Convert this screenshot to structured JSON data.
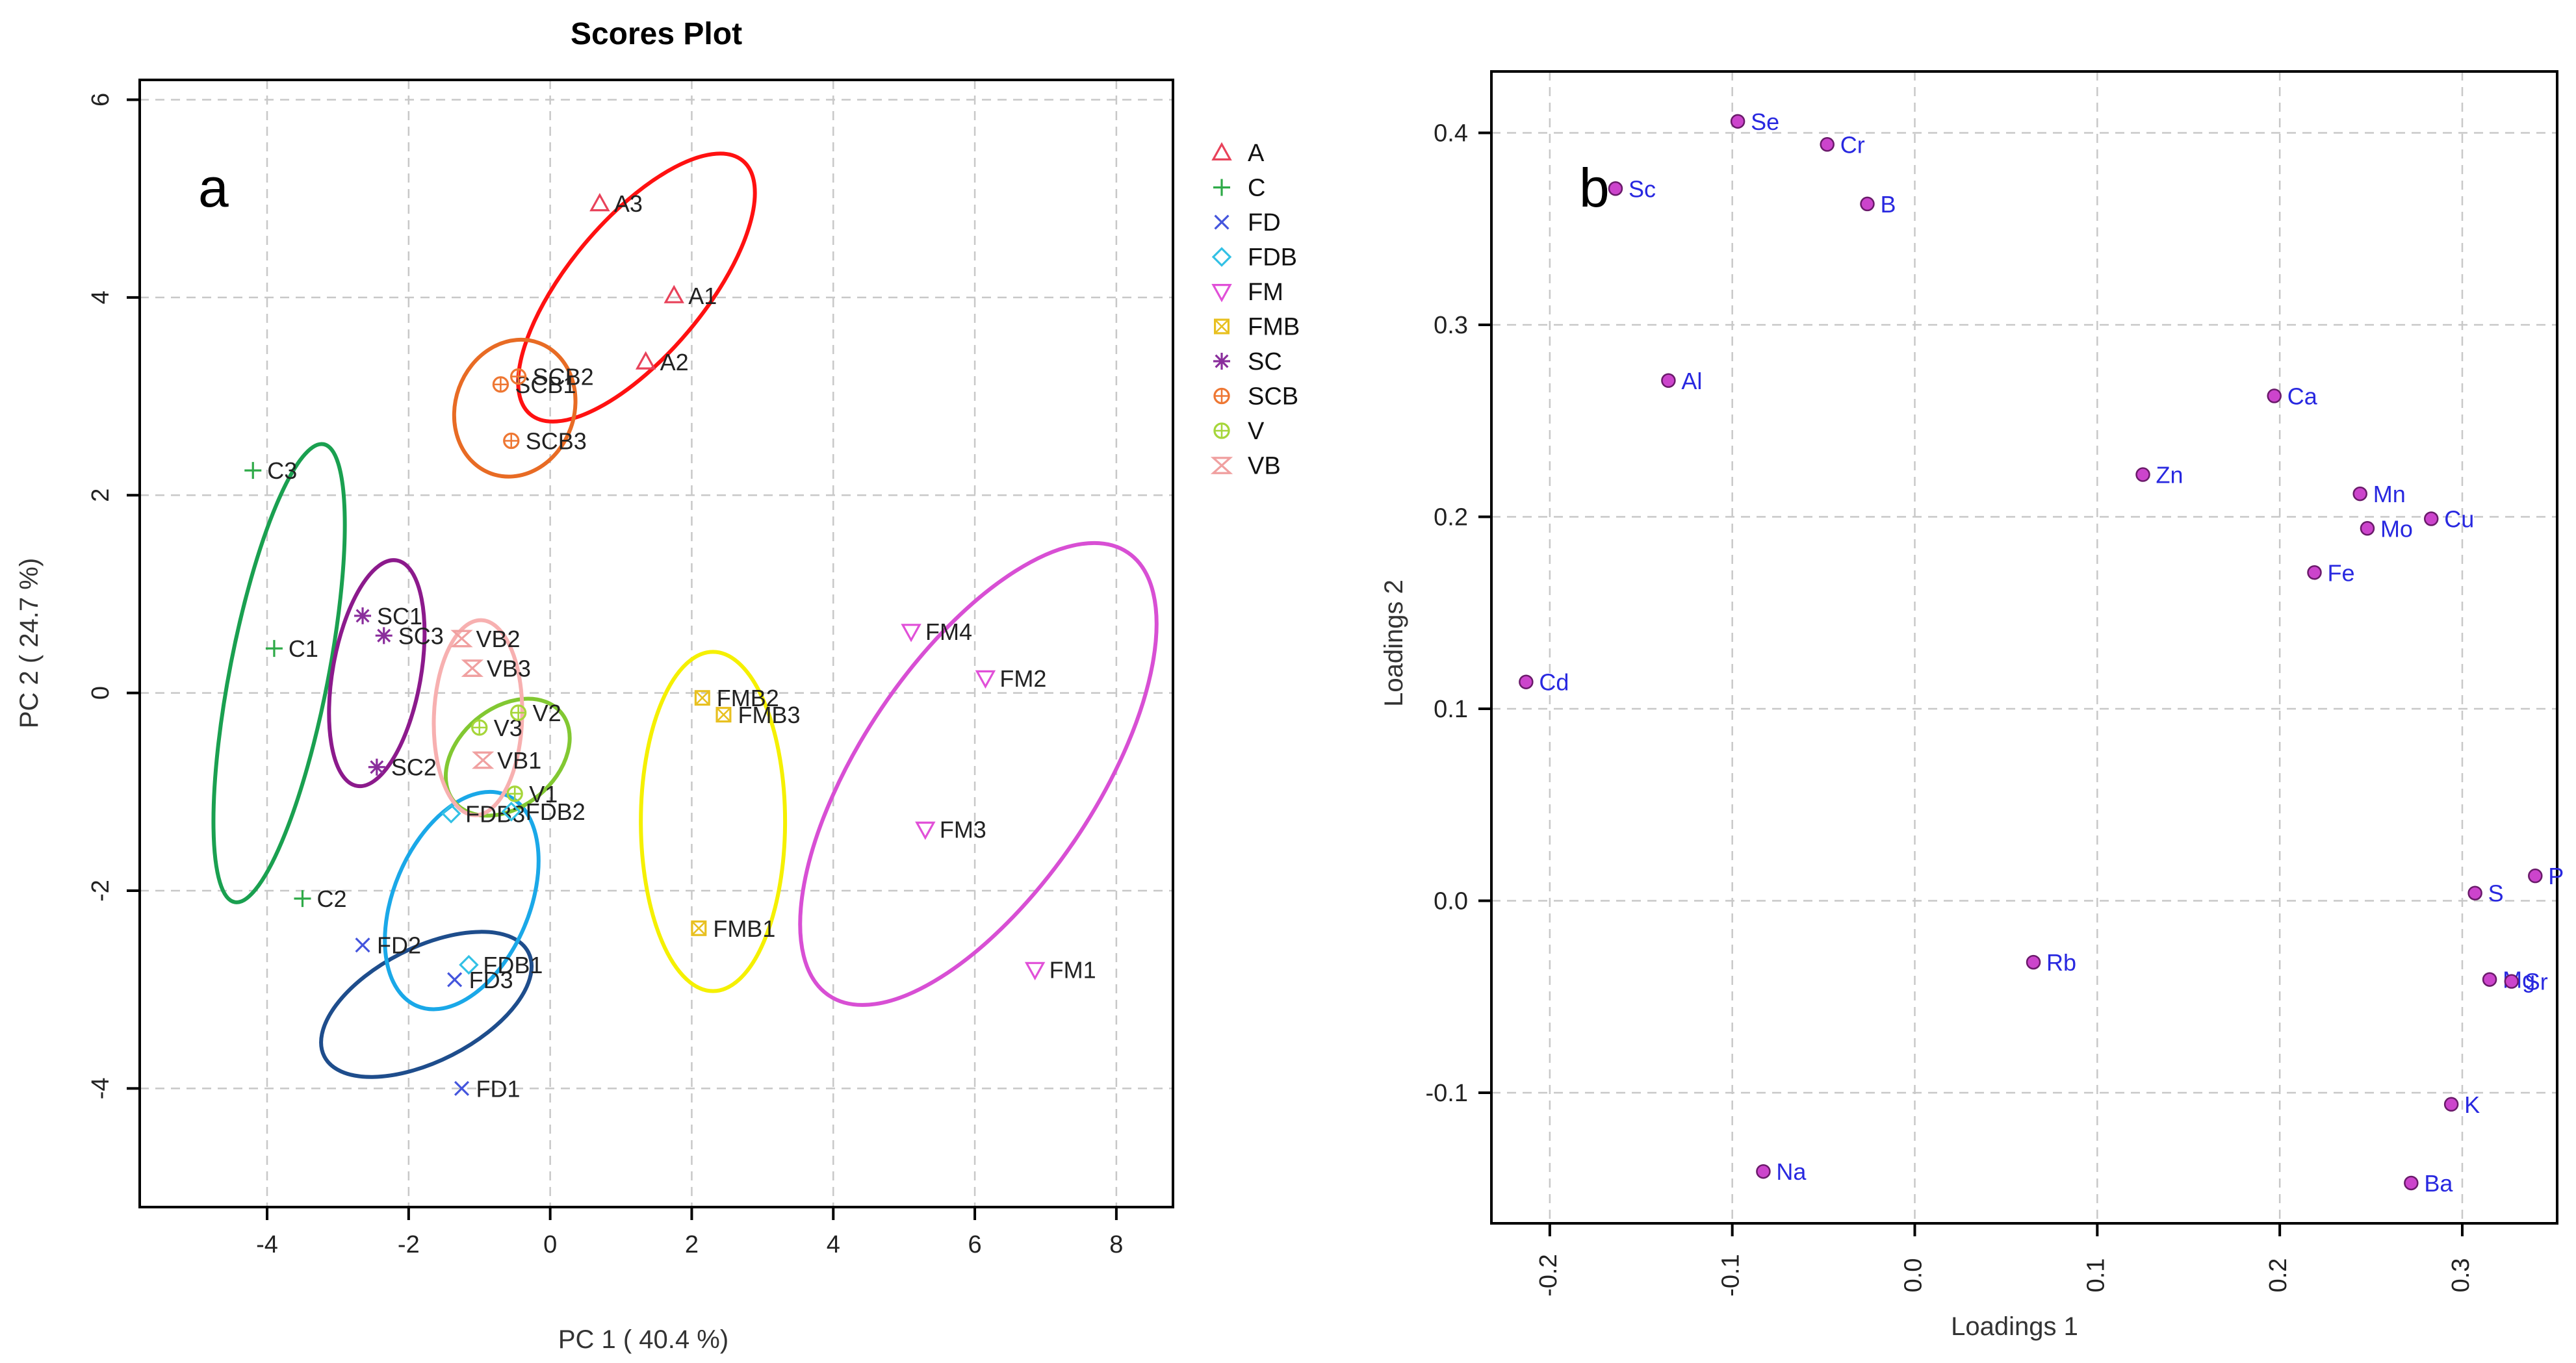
{
  "chart_data": [
    {
      "type": "scatter",
      "panel_letter": "a",
      "title": "Scores Plot",
      "xlabel": "PC 1 ( 40.4 %)",
      "ylabel": "PC 2 ( 24.7 %)",
      "xlim": [
        -5.8,
        8.8
      ],
      "ylim": [
        -5.2,
        6.2
      ],
      "xticks": [
        "-4",
        "-2",
        "0",
        "2",
        "4",
        "6",
        "8"
      ],
      "xtick_values": [
        -4,
        -2,
        0,
        2,
        4,
        6,
        8
      ],
      "yticks": [
        "-4",
        "-2",
        "0",
        "2",
        "4",
        "6"
      ],
      "ytick_values": [
        -4,
        -2,
        0,
        2,
        4,
        6
      ],
      "grid": true,
      "legend_position": "right, outside",
      "series": [
        {
          "name": "A",
          "color": "#e8425a",
          "marker": "triangle-up",
          "points": [
            {
              "label": "A3",
              "x": 0.7,
              "y": 4.95
            },
            {
              "label": "A1",
              "x": 1.75,
              "y": 4.02
            },
            {
              "label": "A2",
              "x": 1.35,
              "y": 3.35
            }
          ],
          "ellipse": {
            "cx": 1.22,
            "cy": 4.1,
            "rx": 1.95,
            "ry": 0.8,
            "angle": -50,
            "color": "#ff1111"
          }
        },
        {
          "name": "C",
          "color": "#2eaa48",
          "marker": "plus",
          "points": [
            {
              "label": "C3",
              "x": -4.2,
              "y": 2.25
            },
            {
              "label": "C1",
              "x": -3.9,
              "y": 0.45
            },
            {
              "label": "C2",
              "x": -3.5,
              "y": -2.08
            }
          ],
          "ellipse": {
            "cx": -3.83,
            "cy": 0.2,
            "rx": 2.75,
            "ry": 0.58,
            "angle": -79,
            "color": "#1aa050"
          }
        },
        {
          "name": "FD",
          "color": "#4455dd",
          "marker": "cross",
          "points": [
            {
              "label": "FD2",
              "x": -2.65,
              "y": -2.55
            },
            {
              "label": "FD3",
              "x": -1.35,
              "y": -2.9
            },
            {
              "label": "FD1",
              "x": -1.25,
              "y": -4.0
            }
          ],
          "ellipse": {
            "cx": -1.75,
            "cy": -3.15,
            "rx": 1.35,
            "ry": 0.67,
            "angle": -27,
            "color": "#1e4d8c"
          }
        },
        {
          "name": "FDB",
          "color": "#33c1e5",
          "marker": "diamond",
          "points": [
            {
              "label": "FDB3",
              "x": -1.4,
              "y": -1.22
            },
            {
              "label": "FDB2",
              "x": -0.55,
              "y": -1.2
            },
            {
              "label": "FDB1",
              "x": -1.15,
              "y": -2.75
            }
          ],
          "ellipse": {
            "cx": -1.25,
            "cy": -2.1,
            "rx": 1.35,
            "ry": 0.8,
            "angle": -67,
            "color": "#1aa8e8"
          }
        },
        {
          "name": "FM",
          "color": "#e150d8",
          "marker": "triangle-down",
          "points": [
            {
              "label": "FM4",
              "x": 5.1,
              "y": 0.62
            },
            {
              "label": "FM2",
              "x": 6.15,
              "y": 0.15
            },
            {
              "label": "FM3",
              "x": 5.3,
              "y": -1.38
            },
            {
              "label": "FM1",
              "x": 6.85,
              "y": -2.8
            }
          ],
          "ellipse": {
            "cx": 6.05,
            "cy": -0.82,
            "rx": 3.15,
            "ry": 1.38,
            "angle": -56,
            "color": "#d84fd4"
          }
        },
        {
          "name": "FMB",
          "color": "#e8c020",
          "marker": "square-x",
          "points": [
            {
              "label": "FMB2",
              "x": 2.15,
              "y": -0.05
            },
            {
              "label": "FMB3",
              "x": 2.45,
              "y": -0.22
            },
            {
              "label": "FMB1",
              "x": 2.1,
              "y": -2.38
            }
          ],
          "ellipse": {
            "cx": 2.3,
            "cy": -1.3,
            "rx": 2.0,
            "ry": 0.85,
            "angle": -90,
            "color": "#f5f000"
          }
        },
        {
          "name": "SC",
          "color": "#8a2e9c",
          "marker": "asterisk",
          "points": [
            {
              "label": "SC1",
              "x": -2.65,
              "y": 0.78
            },
            {
              "label": "SC3",
              "x": -2.35,
              "y": 0.58
            },
            {
              "label": "SC2",
              "x": -2.45,
              "y": -0.75
            }
          ],
          "ellipse": {
            "cx": -2.45,
            "cy": 0.2,
            "rx": 1.35,
            "ry": 0.52,
            "angle": -80,
            "color": "#8c1a8c"
          }
        },
        {
          "name": "SCB",
          "color": "#ee7733",
          "marker": "circle-plus",
          "points": [
            {
              "label": "SCB1",
              "x": -0.7,
              "y": 3.12
            },
            {
              "label": "SCB2",
              "x": -0.45,
              "y": 3.2
            },
            {
              "label": "SCB3",
              "x": -0.55,
              "y": 2.55
            }
          ],
          "ellipse": {
            "cx": -0.5,
            "cy": 2.88,
            "rx": 0.82,
            "ry": 0.7,
            "angle": -70,
            "color": "#e86b24"
          }
        },
        {
          "name": "V",
          "color": "#a6d63a",
          "marker": "circle-plus",
          "points": [
            {
              "label": "V3",
              "x": -1.0,
              "y": -0.35
            },
            {
              "label": "V2",
              "x": -0.45,
              "y": -0.2
            },
            {
              "label": "V1",
              "x": -0.5,
              "y": -1.02
            }
          ],
          "ellipse": {
            "cx": -0.6,
            "cy": -0.65,
            "rx": 0.82,
            "ry": 0.58,
            "angle": -40,
            "color": "#82c832"
          }
        },
        {
          "name": "VB",
          "color": "#f0a0a0",
          "marker": "hourglass",
          "points": [
            {
              "label": "VB2",
              "x": -1.25,
              "y": 0.55
            },
            {
              "label": "VB3",
              "x": -1.1,
              "y": 0.25
            },
            {
              "label": "VB1",
              "x": -0.95,
              "y": -0.68
            }
          ],
          "ellipse": {
            "cx": -1.02,
            "cy": -0.25,
            "rx": 1.15,
            "ry": 0.52,
            "angle": -88,
            "color": "#f7b0b0"
          }
        }
      ]
    },
    {
      "type": "scatter",
      "panel_letter": "b",
      "title": "",
      "xlabel": "Loadings 1",
      "ylabel": "Loadings 2",
      "xlim": [
        -0.232,
        0.352
      ],
      "ylim": [
        -0.168,
        0.432
      ],
      "xticks": [
        "-0.2",
        "-0.1",
        "0.0",
        "0.1",
        "0.2",
        "0.3"
      ],
      "xtick_values": [
        -0.2,
        -0.1,
        0.0,
        0.1,
        0.2,
        0.3
      ],
      "yticks": [
        "-0.1",
        "0.0",
        "0.1",
        "0.2",
        "0.3",
        "0.4"
      ],
      "ytick_values": [
        -0.1,
        0.0,
        0.1,
        0.2,
        0.3,
        0.4
      ],
      "grid": true,
      "point_color": "#cc44cc",
      "label_color": "#2828e0",
      "points": [
        {
          "label": "Se",
          "x": -0.097,
          "y": 0.406
        },
        {
          "label": "Cr",
          "x": -0.048,
          "y": 0.394
        },
        {
          "label": "Sc",
          "x": -0.164,
          "y": 0.371
        },
        {
          "label": "B",
          "x": -0.026,
          "y": 0.363
        },
        {
          "label": "Al",
          "x": -0.135,
          "y": 0.271
        },
        {
          "label": "Ca",
          "x": 0.197,
          "y": 0.263
        },
        {
          "label": "Zn",
          "x": 0.125,
          "y": 0.222
        },
        {
          "label": "Mn",
          "x": 0.244,
          "y": 0.212
        },
        {
          "label": "Cu",
          "x": 0.283,
          "y": 0.199
        },
        {
          "label": "Mo",
          "x": 0.248,
          "y": 0.194
        },
        {
          "label": "Fe",
          "x": 0.219,
          "y": 0.171
        },
        {
          "label": "Cd",
          "x": -0.213,
          "y": 0.114
        },
        {
          "label": "P",
          "x": 0.34,
          "y": 0.013
        },
        {
          "label": "S",
          "x": 0.307,
          "y": 0.004
        },
        {
          "label": "Rb",
          "x": 0.065,
          "y": -0.032
        },
        {
          "label": "Mg",
          "x": 0.315,
          "y": -0.041
        },
        {
          "label": "Sr",
          "x": 0.327,
          "y": -0.042
        },
        {
          "label": "K",
          "x": 0.294,
          "y": -0.106
        },
        {
          "label": "Na",
          "x": -0.083,
          "y": -0.141
        },
        {
          "label": "Ba",
          "x": 0.272,
          "y": -0.147
        }
      ]
    }
  ]
}
